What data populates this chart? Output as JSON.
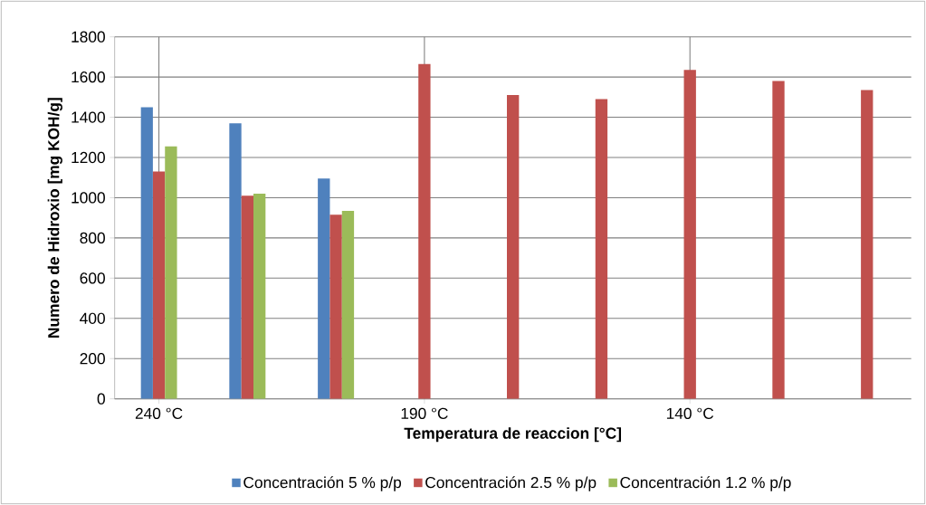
{
  "chart_data": {
    "type": "bar",
    "xlabel": "Temperatura de reaccion [°C]",
    "ylabel": "Numero de Hidroxio [mg KOH/g]",
    "categories": [
      "240 °C",
      null,
      null,
      "190 °C",
      null,
      null,
      "140 °C",
      null,
      null
    ],
    "series": [
      {
        "name": "Concentración  5 % p/p",
        "color": "#4f81bd",
        "values": [
          1450,
          1370,
          1095,
          null,
          null,
          null,
          null,
          null,
          null
        ]
      },
      {
        "name": "Concentración  2.5 % p/p",
        "color": "#c0504d",
        "values": [
          1130,
          1010,
          915,
          1665,
          1510,
          1490,
          1635,
          1580,
          1535
        ]
      },
      {
        "name": "Concentración  1.2 % p/p",
        "color": "#9bbb59",
        "values": [
          1255,
          1020,
          935,
          null,
          null,
          null,
          null,
          null,
          null
        ]
      }
    ],
    "ylim": [
      0,
      1800
    ],
    "yticks": [
      0,
      200,
      400,
      600,
      800,
      1000,
      1200,
      1400,
      1600,
      1800
    ],
    "grid": true,
    "legend": "bottom"
  }
}
